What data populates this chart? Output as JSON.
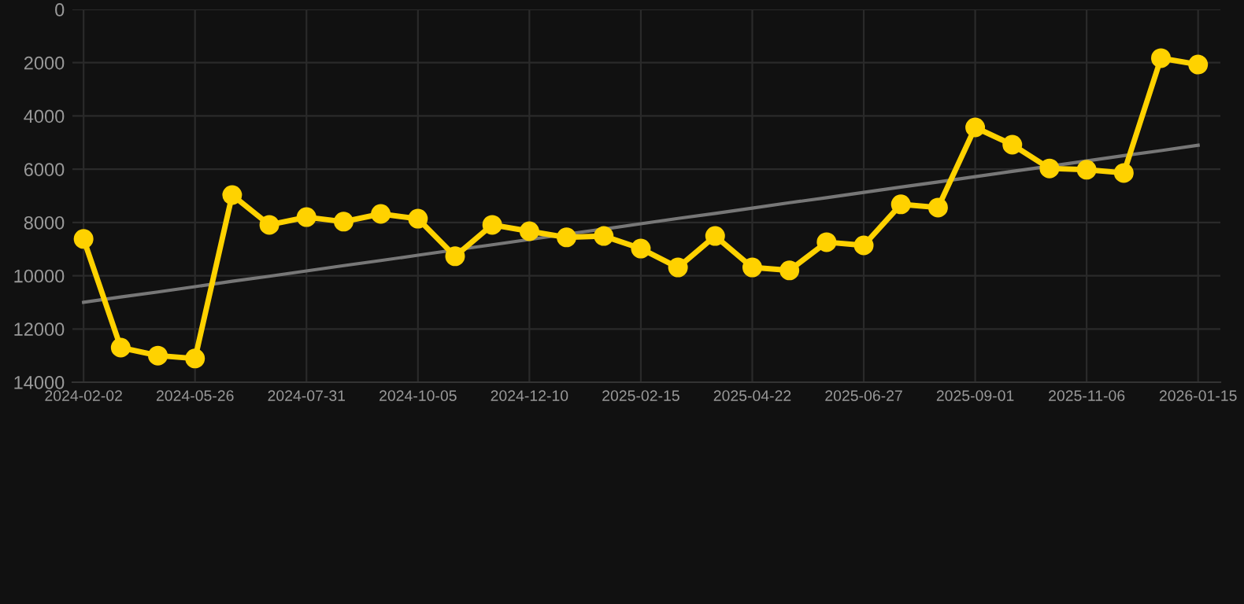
{
  "chart_data": {
    "type": "line",
    "categories": [
      "2024-02-02",
      null,
      null,
      "2024-05-26",
      null,
      null,
      "2024-07-31",
      null,
      null,
      "2024-10-05",
      null,
      null,
      "2024-12-10",
      null,
      null,
      "2025-02-15",
      null,
      null,
      "2025-04-22",
      null,
      null,
      "2025-06-27",
      null,
      null,
      "2025-09-01",
      null,
      null,
      "2025-11-06",
      null,
      null,
      "2026-01-15"
    ],
    "series": [
      {
        "color": "#ffd200",
        "marker": "circle",
        "values": [
          8620,
          12700,
          13000,
          13110,
          6970,
          8090,
          7800,
          7970,
          7680,
          7860,
          9270,
          8090,
          8330,
          8560,
          8510,
          8980,
          9690,
          8510,
          9690,
          9800,
          8740,
          8860,
          7320,
          7440,
          4430,
          5080,
          5970,
          6020,
          6140,
          1830,
          2070
        ]
      },
      {
        "type": "line",
        "color": "#777777",
        "marker": "none",
        "values": [
          11000,
          10800,
          10610,
          10410,
          10210,
          10020,
          9820,
          9620,
          9430,
          9230,
          9030,
          8840,
          8640,
          8440,
          8250,
          8050,
          7850,
          7660,
          7460,
          7260,
          7070,
          6870,
          6670,
          6480,
          6280,
          6080,
          5890,
          5690,
          5490,
          5300,
          5100
        ]
      }
    ],
    "ylim": [
      14000,
      0
    ],
    "yticks": [
      0,
      2000,
      4000,
      6000,
      8000,
      10000,
      12000,
      14000
    ],
    "grid": true,
    "legend": false
  }
}
